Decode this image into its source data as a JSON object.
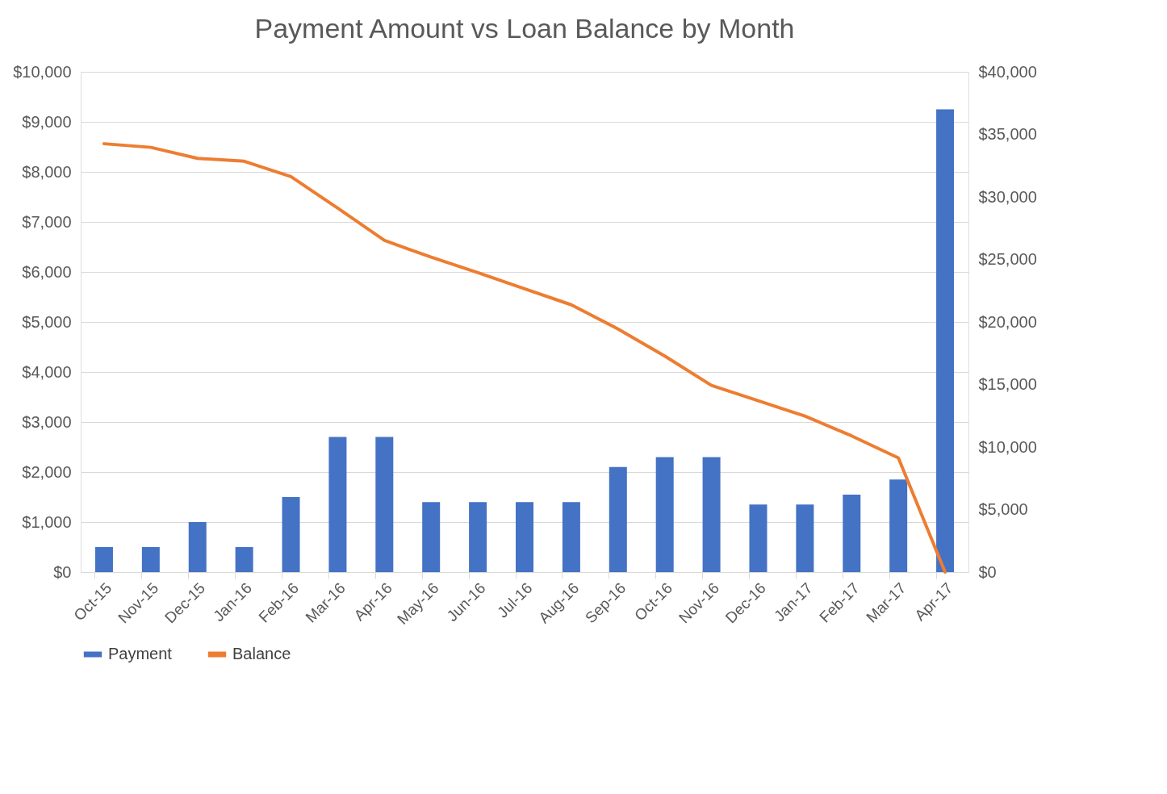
{
  "chart_data": {
    "type": "bar",
    "title": "Payment Amount vs Loan Balance by Month",
    "categories": [
      "Oct-15",
      "Nov-15",
      "Dec-15",
      "Jan-16",
      "Feb-16",
      "Mar-16",
      "Apr-16",
      "May-16",
      "Jun-16",
      "Jul-16",
      "Aug-16",
      "Sep-16",
      "Oct-16",
      "Nov-16",
      "Dec-16",
      "Jan-17",
      "Feb-17",
      "Mar-17",
      "Apr-17"
    ],
    "series": [
      {
        "name": "Payment",
        "color": "#4472c4",
        "values": [
          500,
          500,
          1000,
          500,
          1500,
          2700,
          2700,
          1400,
          1400,
          1400,
          1400,
          2100,
          2300,
          2300,
          1350,
          1350,
          1550,
          1850,
          9250
        ]
      },
      {
        "name": "Balance",
        "type": "line",
        "axis": "y2",
        "color": "#ed7d31",
        "values": [
          34250,
          33960,
          33080,
          32850,
          31620,
          29100,
          26520,
          25180,
          23950,
          22660,
          21370,
          19440,
          17270,
          14930,
          13700,
          12470,
          10890,
          9130,
          0
        ]
      }
    ],
    "ylim": [
      0,
      10000
    ],
    "yticks": [
      {
        "value": 0,
        "label": "$0"
      },
      {
        "value": 1000,
        "label": "$1,000"
      },
      {
        "value": 2000,
        "label": "$2,000"
      },
      {
        "value": 3000,
        "label": "$3,000"
      },
      {
        "value": 4000,
        "label": "$4,000"
      },
      {
        "value": 5000,
        "label": "$5,000"
      },
      {
        "value": 6000,
        "label": "$6,000"
      },
      {
        "value": 7000,
        "label": "$7,000"
      },
      {
        "value": 8000,
        "label": "$8,000"
      },
      {
        "value": 9000,
        "label": "$9,000"
      },
      {
        "value": 10000,
        "label": "$10,000"
      }
    ],
    "y2lim": [
      0,
      40000
    ],
    "y2ticks": [
      {
        "value": 0,
        "label": "$0"
      },
      {
        "value": 5000,
        "label": "$5,000"
      },
      {
        "value": 10000,
        "label": "$10,000"
      },
      {
        "value": 15000,
        "label": "$15,000"
      },
      {
        "value": 20000,
        "label": "$20,000"
      },
      {
        "value": 25000,
        "label": "$25,000"
      },
      {
        "value": 30000,
        "label": "$30,000"
      },
      {
        "value": 35000,
        "label": "$35,000"
      },
      {
        "value": 40000,
        "label": "$40,000"
      }
    ],
    "grid": "y",
    "legend": "bottom",
    "marker": "none",
    "line_style": "solid"
  }
}
